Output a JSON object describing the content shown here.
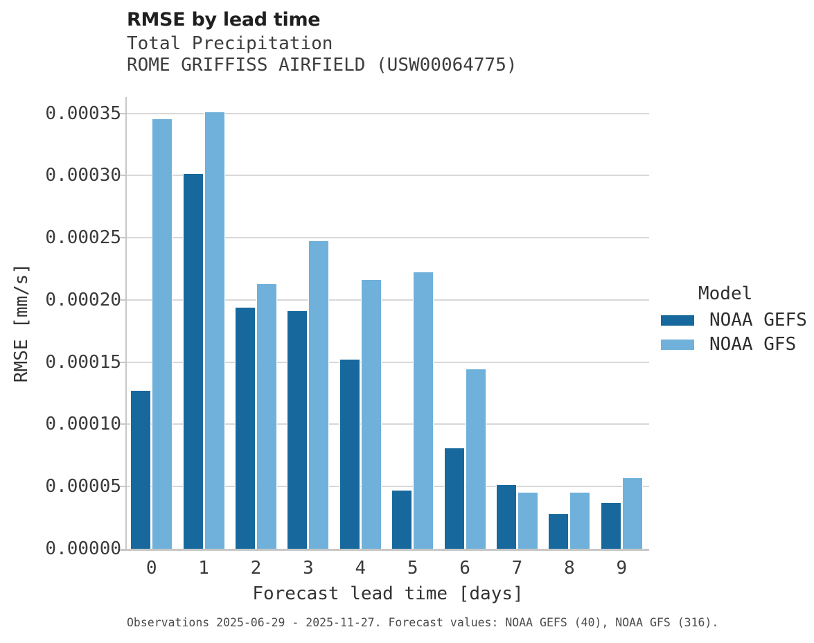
{
  "caption": "Observations 2025-06-29 - 2025-11-27. Forecast values: NOAA GEFS (40), NOAA GFS (316).",
  "chart_data": {
    "type": "bar",
    "title": "RMSE by lead time",
    "subtitle": [
      "Total Precipitation",
      "ROME GRIFFISS AIRFIELD (USW00064775)"
    ],
    "categories": [
      "0",
      "1",
      "2",
      "3",
      "4",
      "5",
      "6",
      "7",
      "8",
      "9"
    ],
    "series": [
      {
        "name": "NOAA GEFS",
        "color": "#17699D",
        "values": [
          0.000127,
          0.000301,
          0.000194,
          0.000191,
          0.000152,
          4.7e-05,
          8.1e-05,
          5.1e-05,
          2.8e-05,
          3.7e-05
        ]
      },
      {
        "name": "NOAA GFS",
        "color": "#6FB1DA",
        "values": [
          0.000345,
          0.000351,
          0.000213,
          0.000247,
          0.000216,
          0.000222,
          0.000144,
          4.5e-05,
          4.5e-05,
          5.7e-05
        ]
      }
    ],
    "xlabel": "Forecast lead time [days]",
    "ylabel": "RMSE [mm/s]",
    "ylim": [
      0,
      0.000363
    ],
    "grid": true,
    "legend": {
      "title": "Model",
      "position": "right"
    },
    "yticks": {
      "values": [
        0,
        5e-05,
        0.0001,
        0.00015,
        0.0002,
        0.00025,
        0.0003,
        0.00035
      ],
      "labels": [
        "0.00000",
        "0.00005",
        "0.00010",
        "0.00015",
        "0.00020",
        "0.00025",
        "0.00030",
        "0.00035"
      ]
    }
  }
}
